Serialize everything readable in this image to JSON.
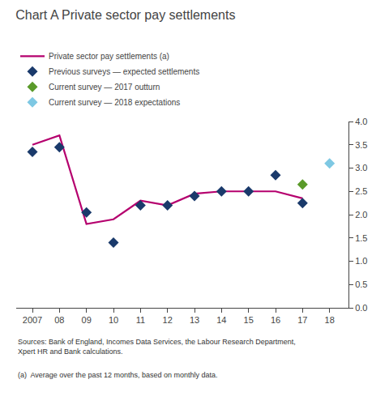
{
  "chart_data": {
    "type": "line",
    "title": "Chart A Private sector pay settlements",
    "series": [
      {
        "name": "Private sector pay settlements (a)",
        "type": "line",
        "line_style": "solid",
        "color": "#b5006e",
        "x": [
          2007,
          2008,
          2009,
          2010,
          2011,
          2012,
          2013,
          2014,
          2015,
          2016,
          2017
        ],
        "values": [
          3.5,
          3.7,
          1.8,
          1.9,
          2.3,
          2.2,
          2.45,
          2.5,
          2.5,
          2.5,
          2.35
        ]
      },
      {
        "name": "Previous surveys — expected settlements",
        "type": "scatter",
        "marker": "diamond",
        "color": "#1a3a6b",
        "x": [
          2007,
          2008,
          2009,
          2010,
          2011,
          2012,
          2013,
          2014,
          2015,
          2016,
          2017
        ],
        "values": [
          3.35,
          3.45,
          2.05,
          1.4,
          2.2,
          2.2,
          2.4,
          2.5,
          2.5,
          2.85,
          2.25
        ]
      },
      {
        "name": "Current survey — 2017 outturn",
        "type": "scatter",
        "marker": "diamond",
        "color": "#5a9a2a",
        "x": [
          2017
        ],
        "values": [
          2.65
        ]
      },
      {
        "name": "Current survey — 2018 expectations",
        "type": "scatter",
        "marker": "diamond",
        "color": "#7ec8e3",
        "x": [
          2018
        ],
        "values": [
          3.1
        ]
      }
    ],
    "xlim": [
      2006.4,
      2018.7
    ],
    "xticks": [
      2007,
      {
        "value": 2008,
        "label": "08"
      },
      {
        "value": 2009,
        "label": "09"
      },
      {
        "value": 2010,
        "label": "10"
      },
      {
        "value": 2011,
        "label": "11"
      },
      {
        "value": 2012,
        "label": "12"
      },
      {
        "value": 2013,
        "label": "13"
      },
      {
        "value": 2014,
        "label": "14"
      },
      {
        "value": 2015,
        "label": "15"
      },
      {
        "value": 2016,
        "label": "16"
      },
      {
        "value": 2017,
        "label": "17"
      },
      {
        "value": 2018,
        "label": "18"
      }
    ],
    "y2lim": [
      0.0,
      4.0
    ],
    "y2ticks": [
      {
        "value": 0.0,
        "label": "0.0"
      },
      0.5,
      {
        "value": 1.0,
        "label": "1.0"
      },
      1.5,
      {
        "value": 2.0,
        "label": "2.0"
      },
      2.5,
      {
        "value": 3.0,
        "label": "3.0"
      },
      3.5,
      {
        "value": 4.0,
        "label": "4.0"
      }
    ],
    "grid": false,
    "legend": "top left",
    "annotations": [
      "Sources: Bank of England, Incomes Data Services, the Labour Research Department,\nXpert HR and Bank calculations.",
      "(a)  Average over the past 12 months, based on monthly data."
    ]
  }
}
